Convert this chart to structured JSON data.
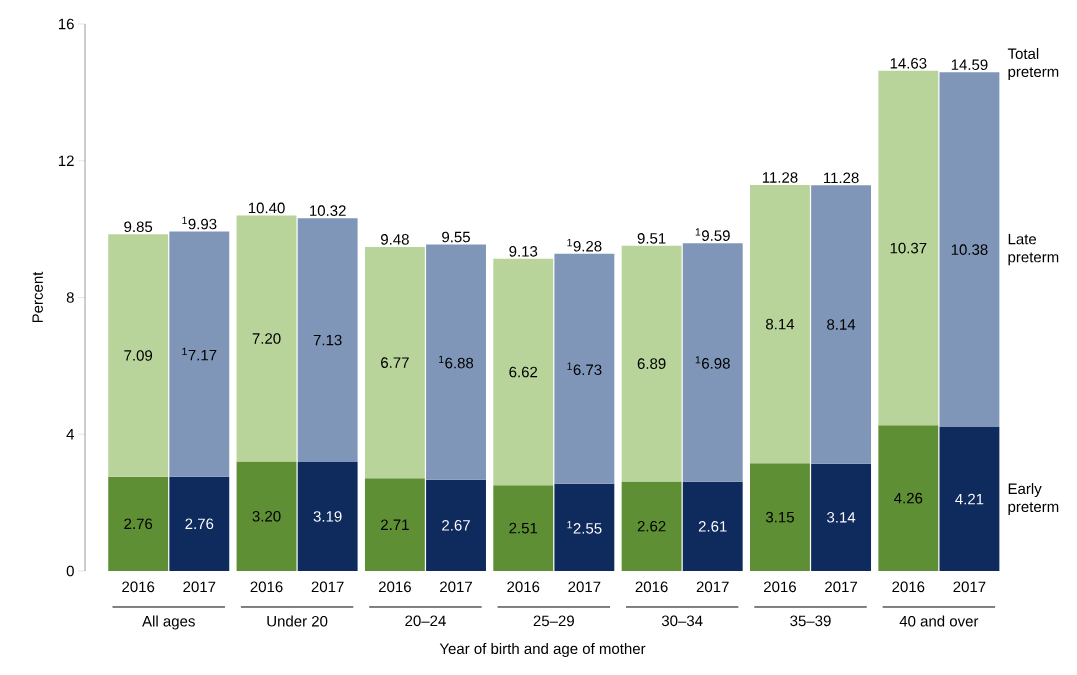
{
  "chart_data": {
    "type": "bar",
    "stacked": true,
    "xlabel": "Year of birth and age of mother",
    "ylabel": "Percent",
    "categories": [
      "2016",
      "2017",
      "2016",
      "2017",
      "2016",
      "2017",
      "2016",
      "2017",
      "2016",
      "2017",
      "2016",
      "2017",
      "2016",
      "2017"
    ],
    "ylim": [
      0,
      16
    ],
    "yticks": [
      0,
      4,
      8,
      12,
      16
    ],
    "series": [
      {
        "name": "Early preterm",
        "colors": [
          "#5f8f35",
          "#0f2a5c",
          "#5f8f35",
          "#0f2a5c",
          "#5f8f35",
          "#0f2a5c",
          "#5f8f35",
          "#0f2a5c",
          "#5f8f35",
          "#0f2a5c",
          "#5f8f35",
          "#0f2a5c",
          "#5f8f35",
          "#0f2a5c"
        ],
        "values": [
          2.76,
          2.76,
          3.2,
          3.19,
          2.71,
          2.67,
          2.51,
          2.55,
          2.62,
          2.61,
          3.15,
          3.14,
          4.26,
          4.21
        ],
        "value_labels": [
          "2.76",
          "2.76",
          "3.20",
          "3.19",
          "2.71",
          "2.67",
          "2.51",
          "$^{1}$2.55",
          "2.62",
          "2.61",
          "3.15",
          "3.14",
          "4.26",
          "4.21"
        ]
      },
      {
        "name": "Late preterm",
        "colors": [
          "#b8d49a",
          "#8096b8",
          "#b8d49a",
          "#8096b8",
          "#b8d49a",
          "#8096b8",
          "#b8d49a",
          "#8096b8",
          "#b8d49a",
          "#8096b8",
          "#b8d49a",
          "#8096b8",
          "#b8d49a",
          "#8096b8"
        ],
        "values": [
          7.09,
          7.17,
          7.2,
          7.13,
          6.77,
          6.88,
          6.62,
          6.73,
          6.89,
          6.98,
          8.14,
          8.14,
          10.37,
          10.38
        ],
        "value_labels": [
          "7.09",
          "$^{1}$7.17",
          "7.20",
          "7.13",
          "6.77",
          "$^{1}$6.88",
          "6.62",
          "$^{1}$6.73",
          "6.89",
          "$^{1}$6.98",
          "8.14",
          "8.14",
          "10.37",
          "10.38"
        ]
      }
    ],
    "totals": [
      "9.85",
      "$^{1}$9.93",
      "10.40",
      "10.32",
      "9.48",
      "9.55",
      "9.13",
      "$^{1}$9.28",
      "9.51",
      "$^{1}$9.59",
      "11.28",
      "11.28",
      "14.63",
      "14.59"
    ],
    "annotations": [
      "All ages",
      "Under 20",
      "20–24",
      "25–29",
      "30–34",
      "35–39",
      "40 and over",
      "Total preterm"
    ]
  }
}
